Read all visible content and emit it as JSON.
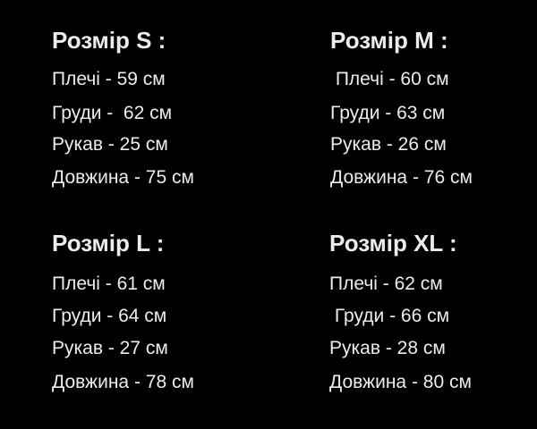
{
  "sizes": [
    {
      "title": "Розмір S :",
      "lines": [
        "Плечі - 59 см",
        "Груди -  62 см",
        "Рукав - 25 см",
        "Довжина - 75 см"
      ]
    },
    {
      "title": "Розмір M :",
      "lines": [
        " Плечі - 60 см",
        "Груди - 63 см",
        "Рукав - 26 см",
        "Довжина - 76 см"
      ]
    },
    {
      "title": "Розмір L :",
      "lines": [
        "Плечі - 61 см",
        "Груди - 64 см",
        "Рукав - 27 см",
        "Довжина - 78 см"
      ]
    },
    {
      "title": "Розмір XL :",
      "lines": [
        "Плечі - 62 см",
        " Груди - 66 см",
        "Рукав - 28 см",
        "Довжина - 80 см"
      ]
    }
  ]
}
